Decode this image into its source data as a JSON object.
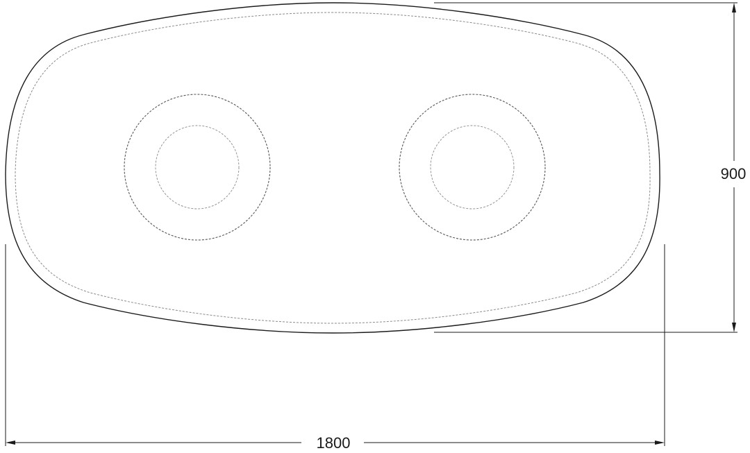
{
  "dimensions": {
    "width_label": "1800",
    "height_label": "900"
  },
  "colors": {
    "line": "#1a1a1a",
    "dashed": "#8a8a8a",
    "background": "#ffffff"
  }
}
